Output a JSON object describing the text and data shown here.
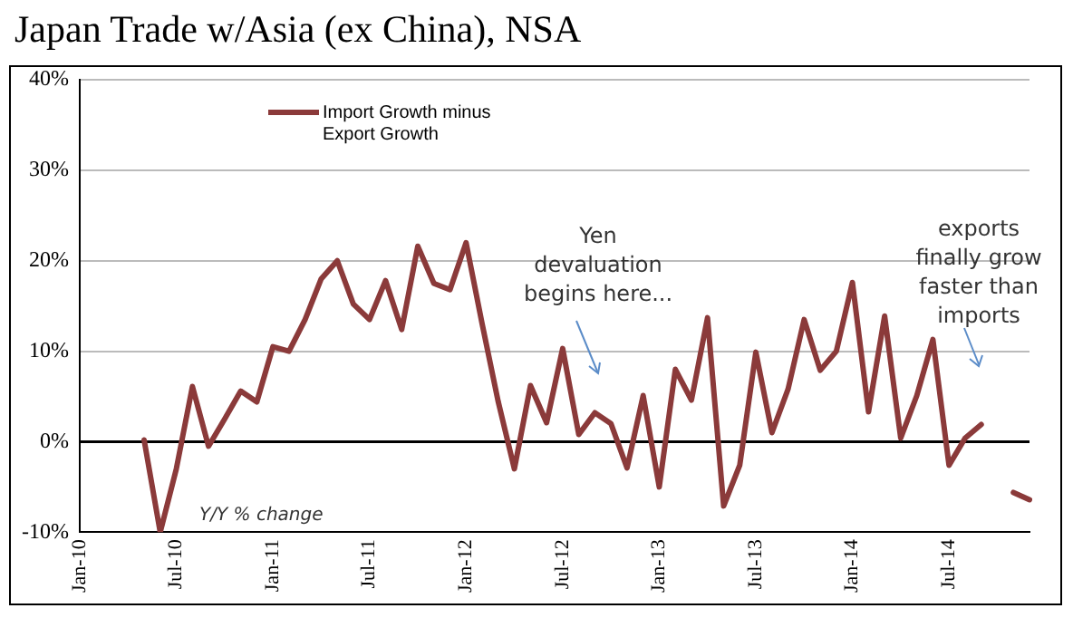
{
  "chart_data": {
    "type": "line",
    "title": "Japan Trade w/Asia (ex China), NSA",
    "categories": [
      "Jan-10",
      null,
      null,
      null,
      null,
      null,
      "Jul-10",
      null,
      null,
      null,
      null,
      null,
      "Jan-11",
      null,
      null,
      null,
      null,
      null,
      "Jul-11",
      null,
      null,
      null,
      null,
      null,
      "Jan-12",
      null,
      null,
      null,
      null,
      null,
      "Jul-12",
      null,
      null,
      null,
      null,
      null,
      "Jan-13",
      null,
      null,
      null,
      null,
      null,
      "Jul-13",
      null,
      null,
      null,
      null,
      null,
      "Jan-14",
      null,
      null,
      null,
      null,
      null,
      "Jul-14",
      null,
      null,
      null,
      null,
      null
    ],
    "series": [
      {
        "name": "Import Growth minus Export Growth",
        "color": "#8b3a3a",
        "values": [
          null,
          null,
          null,
          null,
          0.2,
          -10,
          -3,
          6.1,
          -0.5,
          2.5,
          5.6,
          4.4,
          10.5,
          10,
          13.5,
          18,
          20,
          15.2,
          13.5,
          17.8,
          12.4,
          21.6,
          17.5,
          16.8,
          22,
          13,
          4.4,
          -3,
          6.2,
          2.1,
          10.3,
          0.8,
          3.2,
          2,
          -2.9,
          5.1,
          -5,
          8,
          4.6,
          13.7,
          -7.1,
          -2.6,
          9.9,
          1,
          5.8,
          13.5,
          7.9,
          10,
          17.6,
          3.3,
          13.9,
          0.4,
          5.1,
          11.3,
          -2.6,
          0.4,
          1.9,
          null,
          -5.6,
          -6.4
        ]
      }
    ],
    "ylim": [
      -10,
      40
    ],
    "yticks": [
      {
        "value": -10,
        "label": "-10%"
      },
      {
        "value": 0,
        "label": "0%"
      },
      {
        "value": 10,
        "label": "10%"
      },
      {
        "value": 20,
        "label": "20%"
      },
      {
        "value": 30,
        "label": "30%"
      },
      {
        "value": 40,
        "label": "40%"
      }
    ],
    "grid": "y",
    "legend": "top left",
    "marker": "none",
    "line_style": "solid",
    "annotations": [
      "Yen devaluation begins here...",
      "exports finally grow faster than imports",
      "Y/Y % change"
    ]
  }
}
